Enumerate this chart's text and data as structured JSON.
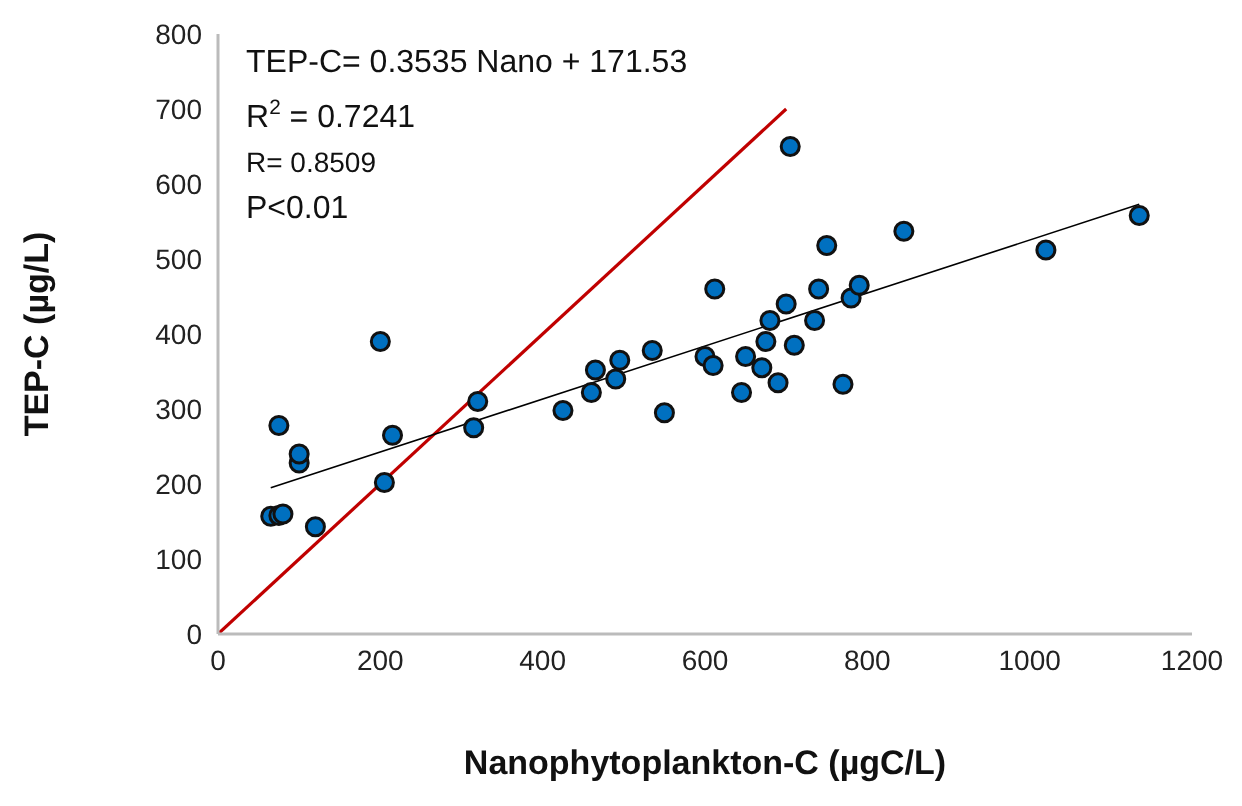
{
  "chart_data": {
    "type": "scatter",
    "xlabel": "Nanophytoplankton-C (µgC/L)",
    "ylabel": "TEP-C (µg/L)",
    "annotations": [
      "TEP-C= 0.3535 Nano + 171.53",
      "R$^{2}$ = 0.7241",
      "R= 0.8509",
      "P<0.01"
    ],
    "xlim": [
      0,
      1200
    ],
    "xticks": [
      0,
      200,
      400,
      600,
      800,
      1000,
      1200
    ],
    "ylim": [
      0,
      800
    ],
    "yticks": [
      0,
      100,
      200,
      300,
      400,
      500,
      600,
      700,
      800
    ],
    "grid": false,
    "legend": false,
    "series": [
      {
        "type": "line",
        "marker": "none",
        "color": "#c00000",
        "x": [
          0,
          700
        ],
        "values": [
          0,
          700
        ]
      },
      {
        "type": "line",
        "marker": "none",
        "color": "#000000",
        "x": [
          65,
          1135
        ],
        "values": [
          195,
          573
        ]
      },
      {
        "marker": "circle",
        "color": "#0070c0",
        "x": [
          65,
          75,
          80,
          75,
          100,
          100,
          120,
          200,
          205,
          215,
          315,
          320,
          425,
          460,
          465,
          490,
          495,
          535,
          550,
          600,
          610,
          612,
          645,
          650,
          670,
          675,
          680,
          690,
          705,
          700,
          710,
          735,
          740,
          750,
          770,
          780,
          790,
          845,
          1020,
          1135
        ],
        "values": [
          157,
          158,
          160,
          278,
          228,
          240,
          143,
          390,
          202,
          265,
          275,
          310,
          298,
          322,
          352,
          340,
          365,
          378,
          295,
          370,
          358,
          460,
          322,
          370,
          355,
          390,
          418,
          335,
          650,
          440,
          385,
          418,
          460,
          518,
          333,
          448,
          465,
          537,
          512,
          558
        ]
      }
    ]
  }
}
